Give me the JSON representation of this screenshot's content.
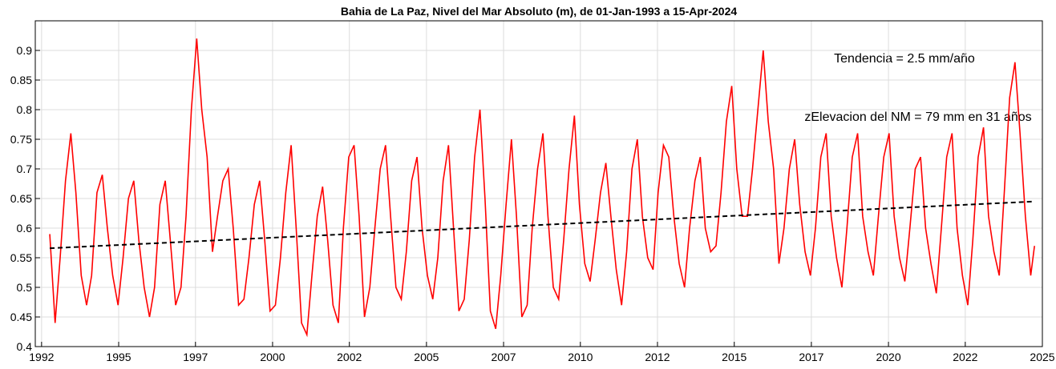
{
  "chart_data": {
    "type": "line",
    "title": "Bahia de La Paz, Nivel del Mar Absoluto (m), de 01-Jan-1993 a 15-Apr-2024",
    "annotations": [
      "Tendencia = 2.5 mm/año",
      "zElevacion del NM = 79 mm en 31 años"
    ],
    "x": [
      1993,
      1993.17,
      1993.33,
      1993.5,
      1993.67,
      1993.83,
      1994,
      1994.17,
      1994.33,
      1994.5,
      1994.67,
      1994.83,
      1995,
      1995.17,
      1995.33,
      1995.5,
      1995.67,
      1995.83,
      1996,
      1996.17,
      1996.33,
      1996.5,
      1996.67,
      1996.83,
      1997,
      1997.17,
      1997.33,
      1997.5,
      1997.67,
      1997.83,
      1998,
      1998.17,
      1998.33,
      1998.5,
      1998.67,
      1998.83,
      1999,
      1999.17,
      1999.33,
      1999.5,
      1999.67,
      1999.83,
      2000,
      2000.17,
      2000.33,
      2000.5,
      2000.67,
      2000.83,
      2001,
      2001.17,
      2001.33,
      2001.5,
      2001.67,
      2001.83,
      2002,
      2002.17,
      2002.33,
      2002.5,
      2002.67,
      2002.83,
      2003,
      2003.17,
      2003.33,
      2003.5,
      2003.67,
      2003.83,
      2004,
      2004.17,
      2004.33,
      2004.5,
      2004.67,
      2004.83,
      2005,
      2005.17,
      2005.33,
      2005.5,
      2005.67,
      2005.83,
      2006,
      2006.17,
      2006.33,
      2006.5,
      2006.67,
      2006.83,
      2007,
      2007.17,
      2007.33,
      2007.5,
      2007.67,
      2007.83,
      2008,
      2008.17,
      2008.33,
      2008.5,
      2008.67,
      2008.83,
      2009,
      2009.17,
      2009.33,
      2009.5,
      2009.67,
      2009.83,
      2010,
      2010.17,
      2010.33,
      2010.5,
      2010.67,
      2010.83,
      2011,
      2011.17,
      2011.33,
      2011.5,
      2011.67,
      2011.83,
      2012,
      2012.17,
      2012.33,
      2012.5,
      2012.67,
      2012.83,
      2013,
      2013.17,
      2013.33,
      2013.5,
      2013.67,
      2013.83,
      2014,
      2014.17,
      2014.33,
      2014.5,
      2014.67,
      2014.83,
      2015,
      2015.17,
      2015.33,
      2015.5,
      2015.67,
      2015.83,
      2016,
      2016.17,
      2016.33,
      2016.5,
      2016.67,
      2016.83,
      2017,
      2017.17,
      2017.33,
      2017.5,
      2017.67,
      2017.83,
      2018,
      2018.17,
      2018.33,
      2018.5,
      2018.67,
      2018.83,
      2019,
      2019.17,
      2019.33,
      2019.5,
      2019.67,
      2019.83,
      2020,
      2020.17,
      2020.33,
      2020.5,
      2020.67,
      2020.83,
      2021,
      2021.17,
      2021.33,
      2021.5,
      2021.67,
      2021.83,
      2022,
      2022.17,
      2022.33,
      2022.5,
      2022.67,
      2022.83,
      2023,
      2023.17,
      2023.33,
      2023.5,
      2023.67,
      2023.83,
      2024,
      2024.17,
      2024.29
    ],
    "series": [
      {
        "color": "#ff0000",
        "values": [
          0.59,
          0.44,
          0.55,
          0.68,
          0.76,
          0.66,
          0.52,
          0.47,
          0.52,
          0.66,
          0.69,
          0.6,
          0.52,
          0.47,
          0.55,
          0.65,
          0.68,
          0.58,
          0.5,
          0.45,
          0.5,
          0.64,
          0.68,
          0.58,
          0.47,
          0.5,
          0.62,
          0.8,
          0.92,
          0.8,
          0.72,
          0.56,
          0.62,
          0.68,
          0.7,
          0.6,
          0.47,
          0.48,
          0.55,
          0.64,
          0.68,
          0.58,
          0.46,
          0.47,
          0.55,
          0.66,
          0.74,
          0.6,
          0.44,
          0.42,
          0.52,
          0.62,
          0.67,
          0.58,
          0.47,
          0.44,
          0.6,
          0.72,
          0.74,
          0.62,
          0.45,
          0.5,
          0.6,
          0.7,
          0.74,
          0.62,
          0.5,
          0.48,
          0.56,
          0.68,
          0.72,
          0.6,
          0.52,
          0.48,
          0.55,
          0.68,
          0.74,
          0.6,
          0.46,
          0.48,
          0.58,
          0.72,
          0.8,
          0.65,
          0.46,
          0.43,
          0.52,
          0.64,
          0.75,
          0.62,
          0.45,
          0.47,
          0.6,
          0.7,
          0.76,
          0.62,
          0.5,
          0.48,
          0.58,
          0.7,
          0.79,
          0.64,
          0.54,
          0.51,
          0.58,
          0.66,
          0.71,
          0.62,
          0.53,
          0.47,
          0.56,
          0.7,
          0.75,
          0.62,
          0.55,
          0.53,
          0.66,
          0.74,
          0.72,
          0.62,
          0.54,
          0.5,
          0.6,
          0.68,
          0.72,
          0.6,
          0.56,
          0.57,
          0.66,
          0.78,
          0.84,
          0.7,
          0.62,
          0.62,
          0.7,
          0.8,
          0.9,
          0.78,
          0.7,
          0.54,
          0.6,
          0.7,
          0.75,
          0.64,
          0.56,
          0.52,
          0.6,
          0.72,
          0.76,
          0.62,
          0.55,
          0.5,
          0.6,
          0.72,
          0.76,
          0.62,
          0.56,
          0.52,
          0.62,
          0.72,
          0.76,
          0.62,
          0.55,
          0.51,
          0.6,
          0.7,
          0.72,
          0.6,
          0.54,
          0.49,
          0.6,
          0.72,
          0.76,
          0.6,
          0.52,
          0.47,
          0.58,
          0.72,
          0.77,
          0.62,
          0.56,
          0.52,
          0.66,
          0.82,
          0.88,
          0.76,
          0.62,
          0.52,
          0.57
        ]
      },
      {
        "color": "#000000",
        "dashed": true,
        "x": [
          1993,
          2024.29
        ],
        "values": [
          0.566,
          0.645
        ]
      }
    ],
    "xlim": [
      1992.54,
      2024.54
    ],
    "xticks": [
      {
        "value": 1992.74,
        "label": "1992"
      },
      {
        "value": 1995.19,
        "label": "1995"
      },
      {
        "value": 1997.63,
        "label": "1997"
      },
      {
        "value": 2000.08,
        "label": "2000"
      },
      {
        "value": 2002.52,
        "label": "2002"
      },
      {
        "value": 2004.97,
        "label": "2005"
      },
      {
        "value": 2007.42,
        "label": "2007"
      },
      {
        "value": 2009.86,
        "label": "2010"
      },
      {
        "value": 2012.31,
        "label": "2012"
      },
      {
        "value": 2014.75,
        "label": "2015"
      },
      {
        "value": 2017.2,
        "label": "2017"
      },
      {
        "value": 2019.65,
        "label": "2020"
      },
      {
        "value": 2022.09,
        "label": "2022"
      },
      {
        "value": 2024.54,
        "label": "2025"
      }
    ],
    "ylim": [
      0.4,
      0.95
    ],
    "yticks": [
      0.4,
      0.45,
      0.5,
      0.55,
      0.6,
      0.65,
      0.7,
      0.75,
      0.8,
      0.85,
      0.9
    ],
    "grid": true
  }
}
